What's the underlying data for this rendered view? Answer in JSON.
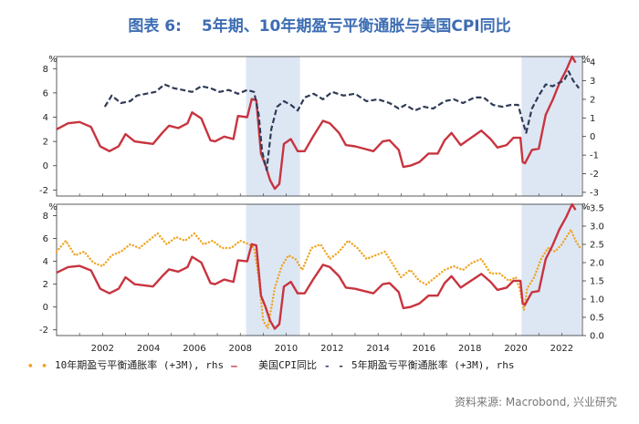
{
  "title": {
    "label": "图表 6:",
    "text": "5年期、10年期盈亏平衡通胀与美国CPI同比"
  },
  "legend": [
    {
      "symbol": "• •",
      "label": "10年期盈亏平衡通胀率 (+3M), rhs",
      "color": "#f0a420"
    },
    {
      "symbol": "—",
      "label": "美国CPI同比",
      "color": "#c8343f"
    },
    {
      "symbol": "- -",
      "label": "5年期盈亏平衡通胀率 (+3M), rhs",
      "color": "#2f3b55"
    }
  ],
  "source": "资料来源: Macrobond, 兴业研究",
  "colors": {
    "cpi": "#c8343f",
    "be5": "#2f3b55",
    "be10": "#f0a420",
    "shade": "#dde7f4",
    "title": "#3d6db3"
  },
  "x_ticks": [
    "2002",
    "2004",
    "2006",
    "2008",
    "2010",
    "2012",
    "2014",
    "2016",
    "2018",
    "2020",
    "2022"
  ],
  "shaded_periods": [
    [
      2008.25,
      2010.6
    ],
    [
      2020.25,
      2022.85
    ]
  ],
  "chart_data": [
    {
      "type": "line",
      "xlim": [
        2000.0,
        2022.9
      ],
      "left_axis": {
        "unit": "%",
        "ylim": [
          -2.5,
          9
        ],
        "ticks": [
          -2,
          0,
          2,
          4,
          6,
          8
        ]
      },
      "right_axis": {
        "unit": "%",
        "ylim": [
          -3.2,
          4.3
        ],
        "ticks": [
          -3,
          -2,
          -1,
          0,
          1,
          2,
          3,
          4
        ]
      },
      "series": [
        {
          "name": "美国CPI同比",
          "axis": "left",
          "style": "solid",
          "x": [
            2000.0,
            2000.5,
            2001.0,
            2001.5,
            2001.9,
            2002.3,
            2002.7,
            2003.0,
            2003.4,
            2003.8,
            2004.2,
            2004.6,
            2004.9,
            2005.3,
            2005.7,
            2005.9,
            2006.3,
            2006.7,
            2006.9,
            2007.3,
            2007.7,
            2007.9,
            2008.3,
            2008.5,
            2008.7,
            2008.9,
            2009.1,
            2009.3,
            2009.5,
            2009.7,
            2009.9,
            2010.2,
            2010.5,
            2010.8,
            2011.2,
            2011.6,
            2011.9,
            2012.3,
            2012.6,
            2013.0,
            2013.4,
            2013.8,
            2014.2,
            2014.5,
            2014.9,
            2015.1,
            2015.4,
            2015.8,
            2016.2,
            2016.6,
            2016.9,
            2017.2,
            2017.6,
            2017.9,
            2018.2,
            2018.5,
            2018.9,
            2019.2,
            2019.6,
            2019.9,
            2020.2,
            2020.3,
            2020.4,
            2020.7,
            2021.0,
            2021.3,
            2021.6,
            2021.9,
            2022.2,
            2022.45,
            2022.6
          ],
          "y": [
            3.0,
            3.5,
            3.6,
            3.2,
            1.6,
            1.2,
            1.6,
            2.6,
            2.0,
            1.9,
            1.8,
            2.7,
            3.3,
            3.1,
            3.5,
            4.4,
            3.9,
            2.1,
            2.0,
            2.4,
            2.2,
            4.1,
            4.0,
            5.5,
            5.4,
            1.0,
            0.0,
            -1.2,
            -1.9,
            -1.5,
            1.8,
            2.2,
            1.2,
            1.2,
            2.5,
            3.7,
            3.5,
            2.7,
            1.7,
            1.6,
            1.4,
            1.2,
            2.0,
            2.1,
            1.3,
            -0.1,
            0.0,
            0.3,
            1.0,
            1.0,
            2.1,
            2.7,
            1.7,
            2.1,
            2.5,
            2.9,
            2.2,
            1.5,
            1.7,
            2.3,
            2.3,
            0.3,
            0.2,
            1.3,
            1.4,
            4.2,
            5.4,
            6.8,
            7.9,
            9.0,
            8.5
          ]
        },
        {
          "name": "5年期盈亏平衡通胀率 (+3M), rhs",
          "axis": "right",
          "style": "dashed",
          "x": [
            2002.1,
            2002.4,
            2002.8,
            2003.2,
            2003.5,
            2003.9,
            2004.3,
            2004.7,
            2005.1,
            2005.5,
            2005.9,
            2006.3,
            2006.7,
            2007.1,
            2007.5,
            2007.9,
            2008.3,
            2008.6,
            2008.8,
            2008.95,
            2009.15,
            2009.35,
            2009.6,
            2009.9,
            2010.2,
            2010.5,
            2010.8,
            2011.2,
            2011.6,
            2012.0,
            2012.5,
            2013.0,
            2013.5,
            2014.0,
            2014.5,
            2014.9,
            2015.2,
            2015.6,
            2016.0,
            2016.4,
            2016.9,
            2017.3,
            2017.7,
            2018.2,
            2018.6,
            2019.0,
            2019.4,
            2019.8,
            2020.1,
            2020.3,
            2020.45,
            2020.7,
            2021.0,
            2021.3,
            2021.6,
            2021.9,
            2022.1,
            2022.3,
            2022.5,
            2022.75
          ],
          "y": [
            1.6,
            2.2,
            1.8,
            1.9,
            2.2,
            2.3,
            2.4,
            2.8,
            2.6,
            2.5,
            2.4,
            2.7,
            2.6,
            2.4,
            2.5,
            2.3,
            2.5,
            2.4,
            1.2,
            -0.8,
            -1.8,
            0.4,
            1.6,
            1.9,
            1.7,
            1.4,
            2.1,
            2.3,
            2.0,
            2.4,
            2.2,
            2.3,
            1.9,
            2.0,
            1.8,
            1.5,
            1.7,
            1.4,
            1.6,
            1.5,
            1.9,
            2.0,
            1.8,
            2.1,
            2.1,
            1.7,
            1.6,
            1.7,
            1.7,
            0.8,
            0.2,
            1.5,
            2.2,
            2.8,
            2.7,
            2.9,
            3.0,
            3.5,
            3.0,
            2.6
          ]
        }
      ]
    },
    {
      "type": "line",
      "xlim": [
        2000.0,
        2022.9
      ],
      "left_axis": {
        "unit": "%",
        "ylim": [
          -2.5,
          9
        ],
        "ticks": [
          -2,
          0,
          2,
          4,
          6,
          8
        ]
      },
      "right_axis": {
        "unit": "%",
        "ylim": [
          0,
          3.6
        ],
        "ticks": [
          0.0,
          0.5,
          1.0,
          1.5,
          2.0,
          2.5,
          3.0,
          3.5
        ]
      },
      "series": [
        {
          "name": "10年期盈亏平衡通胀率 (+3M), rhs",
          "axis": "right",
          "style": "dotted",
          "x": [
            2000.0,
            2000.4,
            2000.8,
            2001.2,
            2001.6,
            2002.0,
            2002.4,
            2002.8,
            2003.2,
            2003.6,
            2004.0,
            2004.4,
            2004.8,
            2005.2,
            2005.6,
            2006.0,
            2006.4,
            2006.8,
            2007.2,
            2007.6,
            2008.0,
            2008.4,
            2008.6,
            2008.8,
            2009.0,
            2009.2,
            2009.5,
            2009.8,
            2010.1,
            2010.4,
            2010.7,
            2011.1,
            2011.5,
            2011.9,
            2012.3,
            2012.7,
            2013.1,
            2013.5,
            2013.9,
            2014.3,
            2014.7,
            2015.0,
            2015.4,
            2015.8,
            2016.1,
            2016.5,
            2016.9,
            2017.3,
            2017.7,
            2018.1,
            2018.5,
            2018.9,
            2019.3,
            2019.7,
            2020.0,
            2020.2,
            2020.35,
            2020.5,
            2020.8,
            2021.1,
            2021.4,
            2021.7,
            2022.0,
            2022.2,
            2022.4,
            2022.6,
            2022.8
          ],
          "y": [
            2.3,
            2.6,
            2.2,
            2.3,
            2.0,
            1.9,
            2.2,
            2.3,
            2.5,
            2.4,
            2.6,
            2.8,
            2.5,
            2.7,
            2.6,
            2.8,
            2.5,
            2.6,
            2.4,
            2.4,
            2.6,
            2.5,
            2.4,
            1.6,
            0.4,
            0.2,
            1.3,
            1.9,
            2.2,
            2.1,
            1.8,
            2.4,
            2.5,
            2.1,
            2.3,
            2.6,
            2.4,
            2.1,
            2.2,
            2.3,
            1.9,
            1.6,
            1.8,
            1.5,
            1.4,
            1.6,
            1.8,
            1.9,
            1.8,
            2.0,
            2.1,
            1.7,
            1.7,
            1.5,
            1.6,
            1.2,
            0.7,
            1.3,
            1.6,
            2.1,
            2.4,
            2.3,
            2.5,
            2.7,
            2.9,
            2.6,
            2.4
          ]
        },
        {
          "name": "美国CPI同比",
          "axis": "left",
          "style": "solid",
          "x": [
            2000.0,
            2000.5,
            2001.0,
            2001.5,
            2001.9,
            2002.3,
            2002.7,
            2003.0,
            2003.4,
            2003.8,
            2004.2,
            2004.6,
            2004.9,
            2005.3,
            2005.7,
            2005.9,
            2006.3,
            2006.7,
            2006.9,
            2007.3,
            2007.7,
            2007.9,
            2008.3,
            2008.5,
            2008.7,
            2008.9,
            2009.1,
            2009.3,
            2009.5,
            2009.7,
            2009.9,
            2010.2,
            2010.5,
            2010.8,
            2011.2,
            2011.6,
            2011.9,
            2012.3,
            2012.6,
            2013.0,
            2013.4,
            2013.8,
            2014.2,
            2014.5,
            2014.9,
            2015.1,
            2015.4,
            2015.8,
            2016.2,
            2016.6,
            2016.9,
            2017.2,
            2017.6,
            2017.9,
            2018.2,
            2018.5,
            2018.9,
            2019.2,
            2019.6,
            2019.9,
            2020.2,
            2020.3,
            2020.4,
            2020.7,
            2021.0,
            2021.3,
            2021.6,
            2021.9,
            2022.2,
            2022.45,
            2022.6
          ],
          "y": [
            3.0,
            3.5,
            3.6,
            3.2,
            1.6,
            1.2,
            1.6,
            2.6,
            2.0,
            1.9,
            1.8,
            2.7,
            3.3,
            3.1,
            3.5,
            4.4,
            3.9,
            2.1,
            2.0,
            2.4,
            2.2,
            4.1,
            4.0,
            5.5,
            5.4,
            1.0,
            0.0,
            -1.2,
            -1.9,
            -1.5,
            1.8,
            2.2,
            1.2,
            1.2,
            2.5,
            3.7,
            3.5,
            2.7,
            1.7,
            1.6,
            1.4,
            1.2,
            2.0,
            2.1,
            1.3,
            -0.1,
            0.0,
            0.3,
            1.0,
            1.0,
            2.1,
            2.7,
            1.7,
            2.1,
            2.5,
            2.9,
            2.2,
            1.5,
            1.7,
            2.3,
            2.3,
            0.3,
            0.2,
            1.3,
            1.4,
            4.2,
            5.4,
            6.8,
            7.9,
            9.0,
            8.5
          ]
        }
      ]
    }
  ]
}
